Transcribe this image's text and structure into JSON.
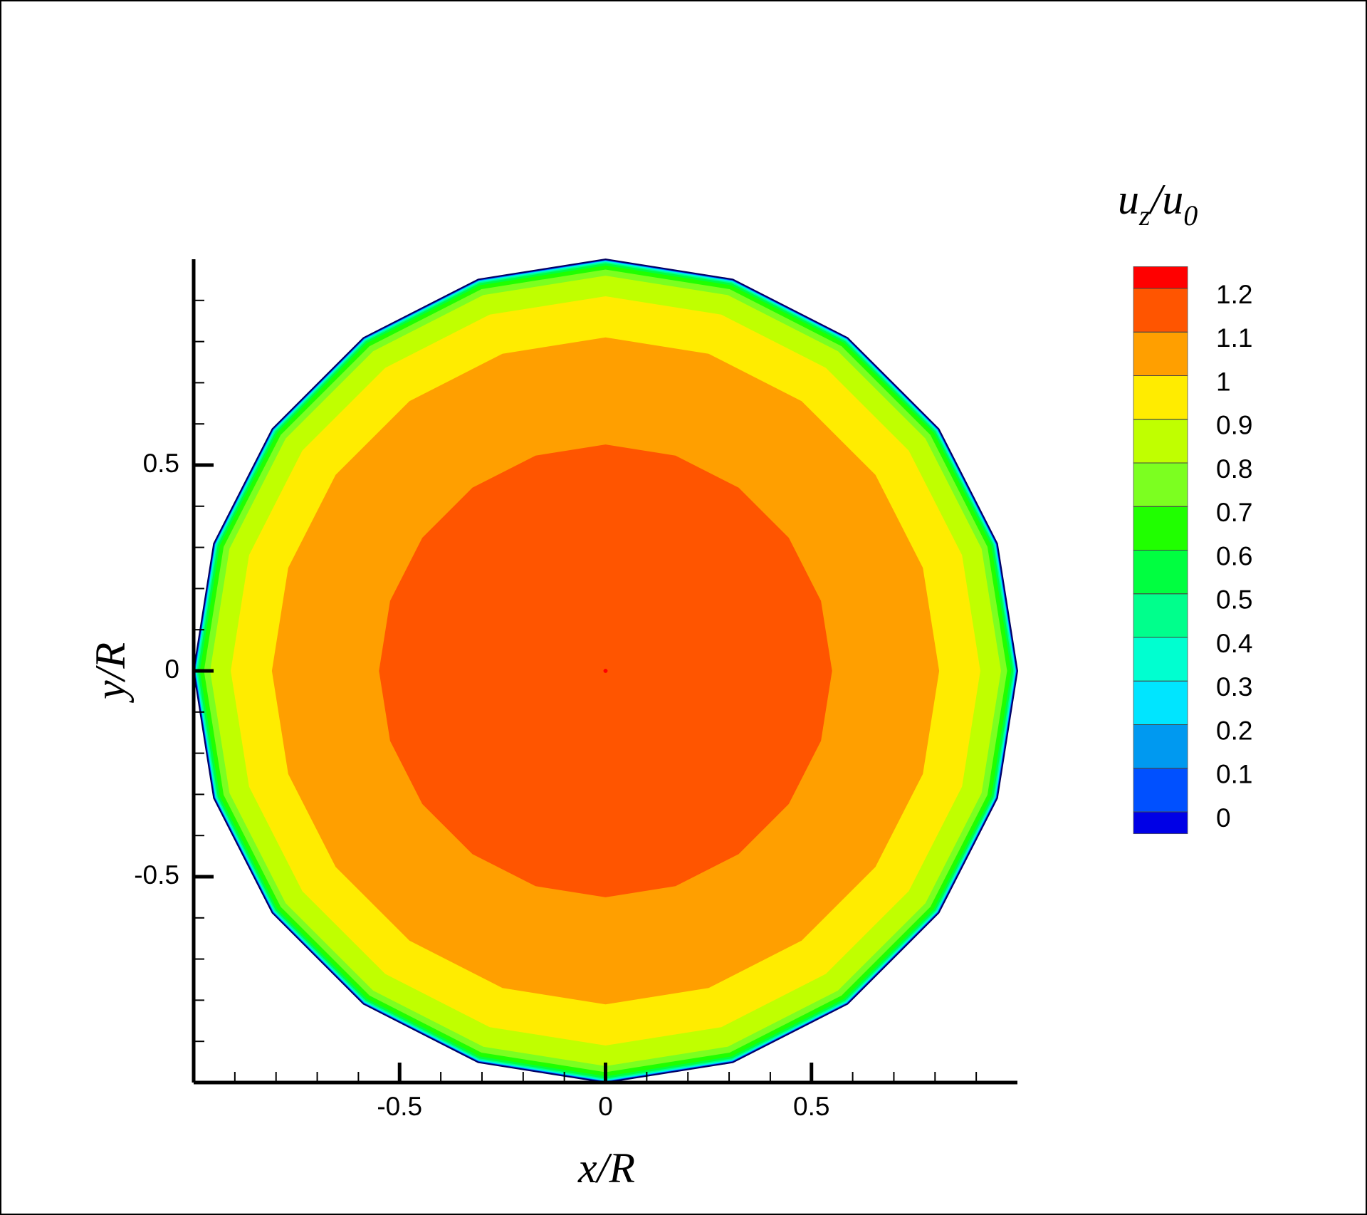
{
  "chart_data": {
    "type": "contour",
    "x_label": "x/R",
    "y_label": "y/R",
    "colorbar_title": [
      [
        "u",
        "z"
      ],
      [
        "/u",
        "0"
      ]
    ],
    "xlim": [
      -1,
      1
    ],
    "ylim": [
      -1,
      1
    ],
    "xticks": [
      -0.5,
      0,
      0.5
    ],
    "yticks": [
      -0.5,
      0,
      0.5
    ],
    "xminorticks": [
      -0.9,
      -0.8,
      -0.7,
      -0.6,
      -0.4,
      -0.3,
      -0.2,
      -0.1,
      0.1,
      0.2,
      0.3,
      0.4,
      0.6,
      0.7,
      0.8,
      0.9
    ],
    "yminorticks": [
      -0.9,
      -0.8,
      -0.7,
      -0.6,
      -0.4,
      -0.3,
      -0.2,
      -0.1,
      0.1,
      0.2,
      0.3,
      0.4,
      0.6,
      0.7,
      0.8,
      0.9
    ],
    "center": [
      0,
      0
    ],
    "domain_radius": 1,
    "levels": [
      0,
      0.1,
      0.2,
      0.3,
      0.4,
      0.5,
      0.6,
      0.7,
      0.8,
      0.9,
      1,
      1.1,
      1.2
    ],
    "level_radius": [
      0.998,
      0.997,
      0.996,
      0.995,
      0.993,
      0.99,
      0.985,
      0.975,
      0.96,
      0.91,
      0.81,
      0.55,
      0.005
    ],
    "colors": [
      "#0000e6",
      "#0050ff",
      "#0099f0",
      "#00e5ff",
      "#00ffd0",
      "#00ff8c",
      "#00ff40",
      "#20ff00",
      "#7cff20",
      "#c0ff00",
      "#ffec00",
      "#ff9f00",
      "#ff5500",
      "#ff0000"
    ],
    "outline_color": "#000060"
  }
}
